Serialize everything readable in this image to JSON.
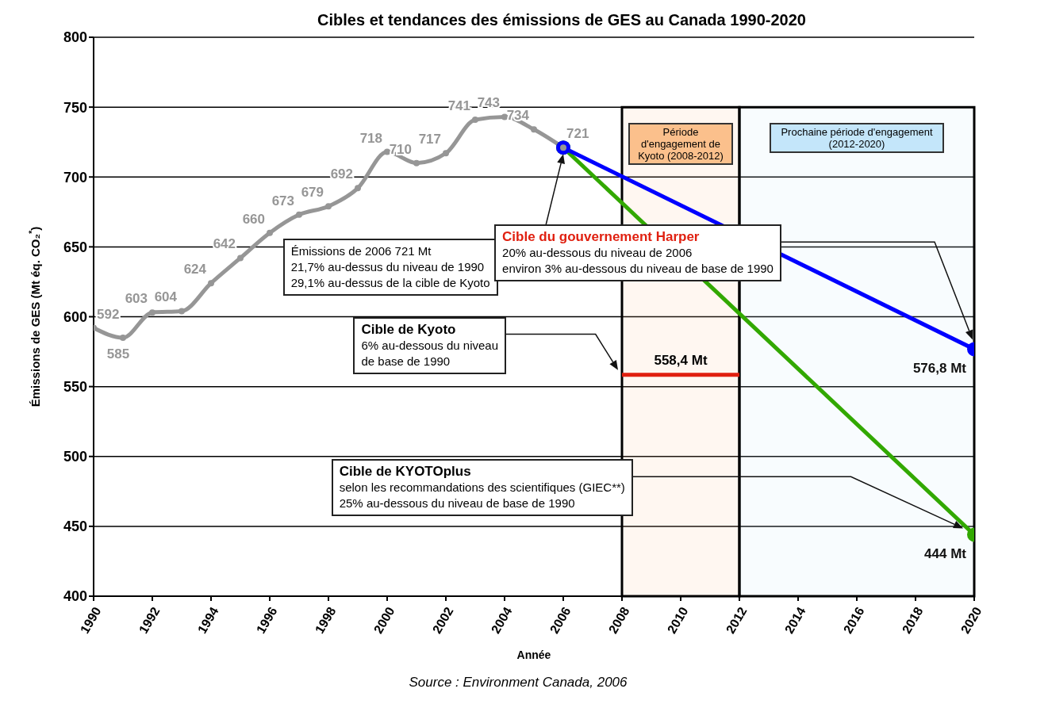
{
  "chart_data": {
    "type": "line",
    "title": "Cibles et tendances des émissions de GES au Canada 1990-2020",
    "xlabel": "Année",
    "ylabel": "Émissions de GES (Mt éq. CO₂$^{*}$)",
    "xlim": [
      1990,
      2020
    ],
    "xticks": [
      1990,
      1992,
      1994,
      1996,
      1998,
      2000,
      2002,
      2004,
      2006,
      2008,
      2010,
      2012,
      2014,
      2016,
      2018,
      2020
    ],
    "ylim": [
      400,
      800
    ],
    "yticks": [
      400,
      450,
      500,
      550,
      600,
      650,
      700,
      750,
      800
    ],
    "grid": "y",
    "line_style": "solid",
    "series": [
      {
        "color": "#32a800",
        "marker": "circle",
        "x": [
          2006,
          2020
        ],
        "values": [
          721,
          444
        ],
        "value_labels": [
          null,
          "444 Mt"
        ]
      },
      {
        "color": "#0000ff",
        "marker": "circle",
        "x": [
          2006,
          2020
        ],
        "values": [
          721,
          576.8
        ],
        "value_labels": [
          null,
          "576,8 Mt"
        ]
      },
      {
        "color": "#e02010",
        "marker": "none",
        "x": [
          2008,
          2012
        ],
        "values": [
          558.4,
          558.4
        ]
      },
      {
        "color": "#969696",
        "marker": "circle",
        "x": [
          1990,
          1991,
          1992,
          1993,
          1994,
          1995,
          1996,
          1997,
          1998,
          1999,
          2000,
          2001,
          2002,
          2003,
          2004,
          2005,
          2006
        ],
        "values": [
          592,
          585,
          603,
          604,
          624,
          642,
          660,
          673,
          679,
          692,
          718,
          710,
          717,
          741,
          743,
          734,
          721
        ],
        "value_labels": [
          "592",
          "585",
          "603",
          "604",
          "624",
          "642",
          "660",
          "673",
          "679",
          "692",
          "718",
          "710",
          "717",
          "741",
          "743",
          "734",
          "721"
        ]
      }
    ],
    "bands": [
      {
        "axis": "x",
        "from": 2008,
        "to": 2012,
        "label": "Période d'engagement de Kyoto (2008-2012)",
        "color": "#fbc08c"
      },
      {
        "axis": "x",
        "from": 2012,
        "to": 2020,
        "label": "Prochaine période d'engagement (2012-2020)",
        "color": "#c4e6fa"
      }
    ],
    "annotations": [
      "Émissions de 2006 721 Mt\n21,7% au-dessus du niveau de 1990\n29,1% au-dessus de la cible de Kyoto",
      "Cible du gouvernement Harper\n20% au-dessous du niveau de 2006\nenviron 3% au-dessous du niveau de base de 1990",
      "Cible de Kyoto\n6% au-dessous du niveau\nde base de 1990",
      "Cible de KYOTOplus\nselon les recommandations des scientifiques (GIEC**)\n25% au-dessous du niveau de base de 1990",
      {
        "text": "558,4 Mt",
        "x": 2010,
        "y": 558.4
      },
      "Source : Environment Canada, 2006"
    ]
  }
}
